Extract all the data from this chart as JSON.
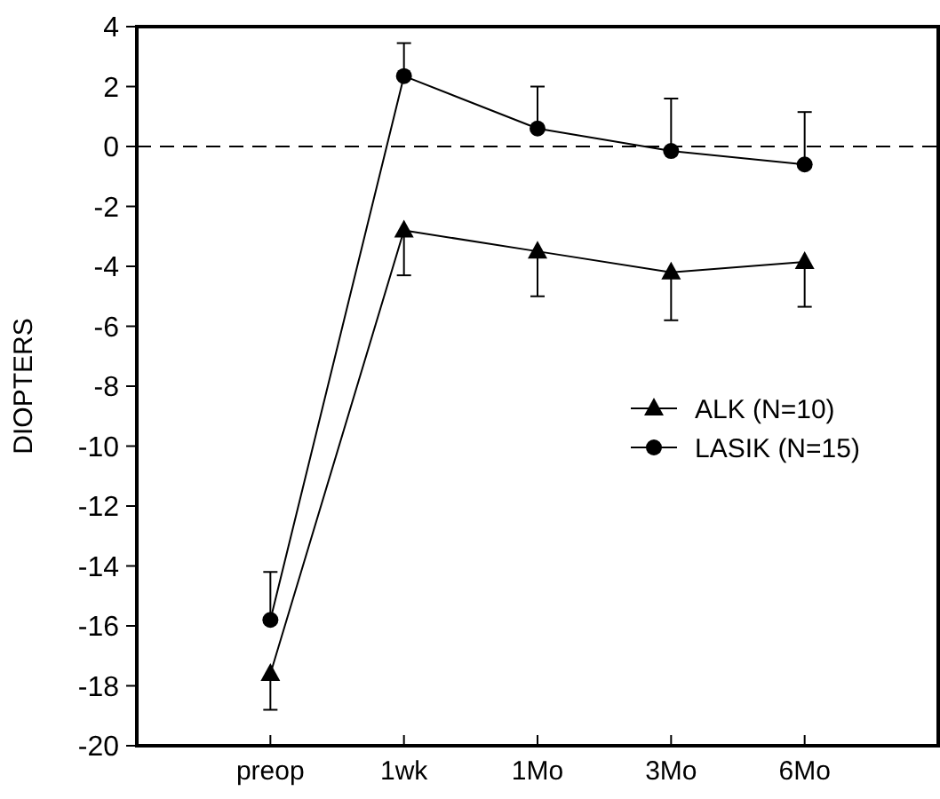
{
  "chart_data": {
    "type": "line",
    "ylabel": "DIOPTERS",
    "categories": [
      "preop",
      "1wk",
      "1Mo",
      "3Mo",
      "6Mo"
    ],
    "ylim": [
      -20,
      4
    ],
    "yticks": [
      -20,
      -18,
      -16,
      -14,
      -12,
      -10,
      -8,
      -6,
      -4,
      -2,
      0,
      2,
      4
    ],
    "grid": false,
    "legend": "right",
    "line_style": "solid",
    "series": [
      {
        "name": "ALK (N=10)",
        "color": "#000000",
        "marker": "triangle",
        "values": [
          -17.6,
          -2.8,
          -3.5,
          -4.2,
          -3.85
        ],
        "errors": [
          [
            -18.8,
            -17.6
          ],
          [
            -4.3,
            -2.8
          ],
          [
            -5.0,
            -3.5
          ],
          [
            -5.8,
            -4.2
          ],
          [
            -5.35,
            -3.85
          ]
        ]
      },
      {
        "name": "LASIK (N=15)",
        "color": "#000000",
        "marker": "circle",
        "values": [
          -15.8,
          2.35,
          0.6,
          -0.15,
          -0.6
        ],
        "errors": [
          [
            -15.8,
            -14.2
          ],
          [
            2.35,
            3.45
          ],
          [
            0.6,
            2.0
          ],
          [
            -0.15,
            1.6
          ],
          [
            -0.6,
            1.15
          ]
        ]
      }
    ],
    "ref_lines": [
      {
        "axis": "y",
        "value": 0,
        "line_style": "dashed",
        "color": "#000000"
      }
    ]
  }
}
